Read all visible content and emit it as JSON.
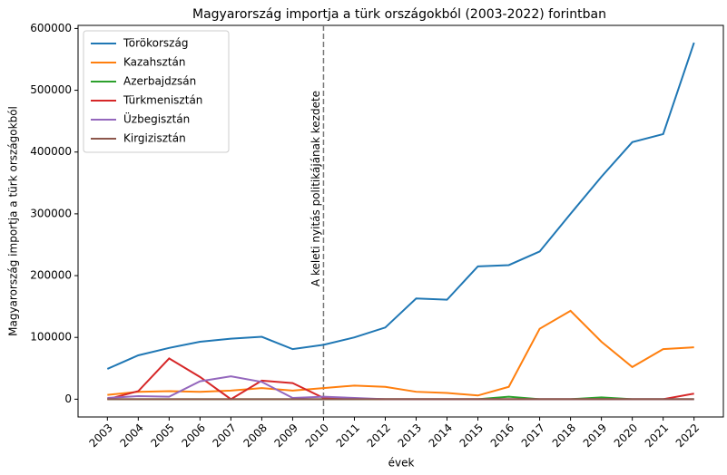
{
  "chart_data": {
    "type": "line",
    "title": "Magyarország importja a türk országokból (2003-2022) forintban",
    "xlabel": "évek",
    "ylabel": "Magyarország importja a türk országokból",
    "annotation": "A keleti nyitás politikájának kezdete",
    "annotation_x": 2010,
    "x": [
      2003,
      2004,
      2005,
      2006,
      2007,
      2008,
      2009,
      2010,
      2011,
      2012,
      2013,
      2014,
      2015,
      2016,
      2017,
      2018,
      2019,
      2020,
      2021,
      2022
    ],
    "series": [
      {
        "name": "Törökország",
        "color": "#1f77b4",
        "values": [
          49000,
          71000,
          83000,
          93000,
          98000,
          101000,
          81000,
          88000,
          100000,
          116000,
          163000,
          161000,
          215000,
          217000,
          239000,
          300000,
          360000,
          416000,
          429000,
          577000
        ]
      },
      {
        "name": "Kazahsztán",
        "color": "#ff7f0e",
        "values": [
          7000,
          12000,
          13000,
          12000,
          14000,
          18000,
          14000,
          18000,
          22000,
          20000,
          12000,
          10000,
          6000,
          20000,
          114000,
          143000,
          93000,
          52000,
          81000,
          84000
        ]
      },
      {
        "name": "Azerbajdzsán",
        "color": "#2ca02c",
        "values": [
          0,
          0,
          0,
          0,
          0,
          0,
          0,
          0,
          0,
          0,
          0,
          0,
          0,
          4000,
          0,
          0,
          3000,
          0,
          0,
          0
        ]
      },
      {
        "name": "Türkmenisztán",
        "color": "#d62728",
        "values": [
          0,
          13000,
          66000,
          36000,
          0,
          30000,
          26000,
          2000,
          1000,
          0,
          0,
          0,
          0,
          0,
          0,
          0,
          0,
          0,
          0,
          9000
        ]
      },
      {
        "name": "Üzbegisztán",
        "color": "#9467bd",
        "values": [
          2000,
          5000,
          4000,
          29000,
          37000,
          28000,
          2000,
          4000,
          2000,
          0,
          0,
          0,
          0,
          0,
          0,
          0,
          0,
          0,
          0,
          0
        ]
      },
      {
        "name": "Kirgizisztán",
        "color": "#8c564b",
        "values": [
          0,
          0,
          0,
          0,
          0,
          0,
          0,
          0,
          0,
          0,
          0,
          0,
          0,
          0,
          0,
          0,
          0,
          0,
          0,
          0
        ]
      }
    ],
    "xlim": [
      2002.05,
      2022.95
    ],
    "ylim": [
      -28800,
      605000
    ],
    "xticks": [
      2003,
      2004,
      2005,
      2006,
      2007,
      2008,
      2009,
      2010,
      2011,
      2012,
      2013,
      2014,
      2015,
      2016,
      2017,
      2018,
      2019,
      2020,
      2021,
      2022
    ],
    "yticks": [
      0,
      100000,
      200000,
      300000,
      400000,
      500000,
      600000
    ],
    "legend": "upper left"
  }
}
